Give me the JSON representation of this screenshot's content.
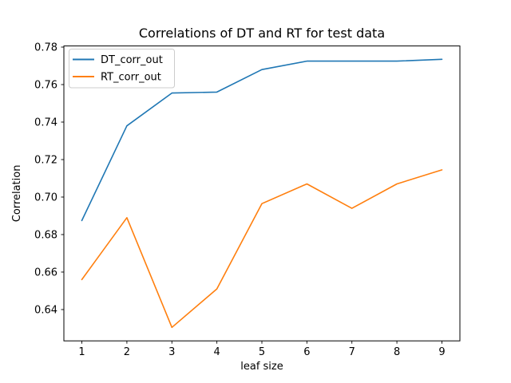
{
  "figure": {
    "background": "#ffffff",
    "frame_color": "#000000",
    "tick_color": "#000000",
    "text_color": "#000000",
    "legend_border_color": "#cccccc",
    "legend_background": "#ffffff"
  },
  "chart_data": {
    "type": "line",
    "title": "Correlations of DT and RT for test data",
    "xlabel": "leaf size",
    "ylabel": "Correlation",
    "x": [
      1,
      2,
      3,
      4,
      5,
      6,
      7,
      8,
      9
    ],
    "series": [
      {
        "name": "DT_corr_out",
        "color": "#1f77b4",
        "values": [
          0.6875,
          0.738,
          0.7555,
          0.756,
          0.768,
          0.7725,
          0.7725,
          0.7725,
          0.7735
        ]
      },
      {
        "name": "RT_corr_out",
        "color": "#ff7f0e",
        "values": [
          0.656,
          0.689,
          0.6305,
          0.651,
          0.6965,
          0.707,
          0.694,
          0.707,
          0.7145
        ]
      }
    ],
    "xlim": [
      0.6,
      9.4
    ],
    "ylim": [
      0.6233,
      0.7806
    ],
    "xticks": [
      1,
      2,
      3,
      4,
      5,
      6,
      7,
      8,
      9
    ],
    "yticks": [
      0.64,
      0.66,
      0.68,
      0.7,
      0.72,
      0.74,
      0.76,
      0.78
    ],
    "grid": false,
    "legend_position": "upper-left"
  }
}
